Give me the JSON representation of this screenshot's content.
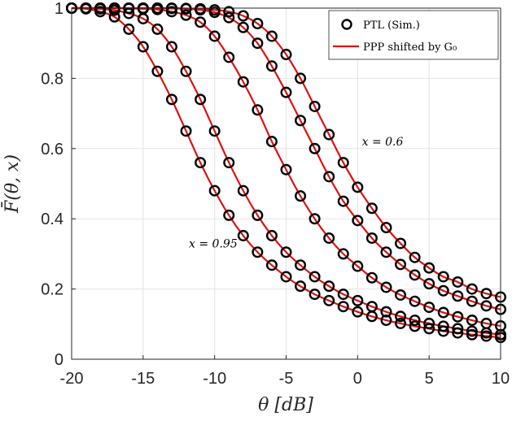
{
  "chart_data": {
    "type": "line",
    "xlabel": "θ [dB]",
    "ylabel": "F̄(θ, x)",
    "xlim": [
      -20,
      10
    ],
    "ylim": [
      0,
      1
    ],
    "x_ticks": [
      "-20",
      "-15",
      "-10",
      "-5",
      "0",
      "5",
      "10"
    ],
    "y_ticks": [
      "0",
      "0.2",
      "0.4",
      "0.6",
      "0.8",
      "1"
    ],
    "grid": true,
    "legend": {
      "placement": "top-right",
      "entries": [
        {
          "label": "PTL (Sim.)",
          "marker": "circle",
          "color": "#000000"
        },
        {
          "label": "PPP shifted by G₀",
          "marker": "line",
          "color": "#e11111"
        }
      ]
    },
    "annotations": [
      {
        "text": "x = 0.6",
        "x": 0.3,
        "y": 0.62
      },
      {
        "text": "x = 0.95",
        "x": -11.8,
        "y": 0.33
      }
    ],
    "x": [
      -20,
      -19,
      -18,
      -17,
      -16,
      -15,
      -14,
      -13,
      -12,
      -11,
      -10,
      -9,
      -8,
      -7,
      -6,
      -5,
      -4,
      -3,
      -2,
      -1,
      0,
      1,
      2,
      3,
      4,
      5,
      6,
      7,
      8,
      9,
      10
    ],
    "series": [
      {
        "values": [
          1.0,
          1.0,
          1.0,
          1.0,
          1.0,
          1.0,
          1.0,
          1.0,
          0.999,
          0.998,
          0.995,
          0.99,
          0.978,
          0.956,
          0.92,
          0.868,
          0.8,
          0.72,
          0.64,
          0.56,
          0.49,
          0.43,
          0.375,
          0.33,
          0.29,
          0.26,
          0.235,
          0.22,
          0.2,
          0.187,
          0.177
        ]
      },
      {
        "values": [
          1.0,
          1.0,
          1.0,
          1.0,
          1.0,
          1.0,
          1.0,
          0.999,
          0.998,
          0.995,
          0.988,
          0.973,
          0.945,
          0.9,
          0.835,
          0.76,
          0.68,
          0.6,
          0.52,
          0.45,
          0.395,
          0.345,
          0.305,
          0.27,
          0.24,
          0.215,
          0.195,
          0.18,
          0.165,
          0.152,
          0.142
        ]
      },
      {
        "values": [
          1.0,
          1.0,
          1.0,
          1.0,
          0.999,
          0.998,
          0.996,
          0.99,
          0.98,
          0.96,
          0.92,
          0.86,
          0.79,
          0.71,
          0.62,
          0.54,
          0.465,
          0.4,
          0.345,
          0.3,
          0.265,
          0.232,
          0.205,
          0.183,
          0.165,
          0.148,
          0.133,
          0.121,
          0.111,
          0.102,
          0.095
        ]
      },
      {
        "values": [
          1.0,
          1.0,
          0.998,
          0.994,
          0.985,
          0.97,
          0.94,
          0.89,
          0.82,
          0.74,
          0.65,
          0.56,
          0.48,
          0.41,
          0.352,
          0.305,
          0.268,
          0.235,
          0.208,
          0.185,
          0.167,
          0.15,
          0.135,
          0.122,
          0.111,
          0.102,
          0.094,
          0.087,
          0.08,
          0.075,
          0.07
        ]
      },
      {
        "values": [
          1.0,
          0.998,
          0.99,
          0.975,
          0.94,
          0.89,
          0.82,
          0.74,
          0.65,
          0.56,
          0.48,
          0.41,
          0.352,
          0.305,
          0.268,
          0.235,
          0.208,
          0.185,
          0.167,
          0.15,
          0.135,
          0.122,
          0.111,
          0.102,
          0.094,
          0.087,
          0.08,
          0.075,
          0.07,
          0.066,
          0.062
        ]
      }
    ]
  }
}
